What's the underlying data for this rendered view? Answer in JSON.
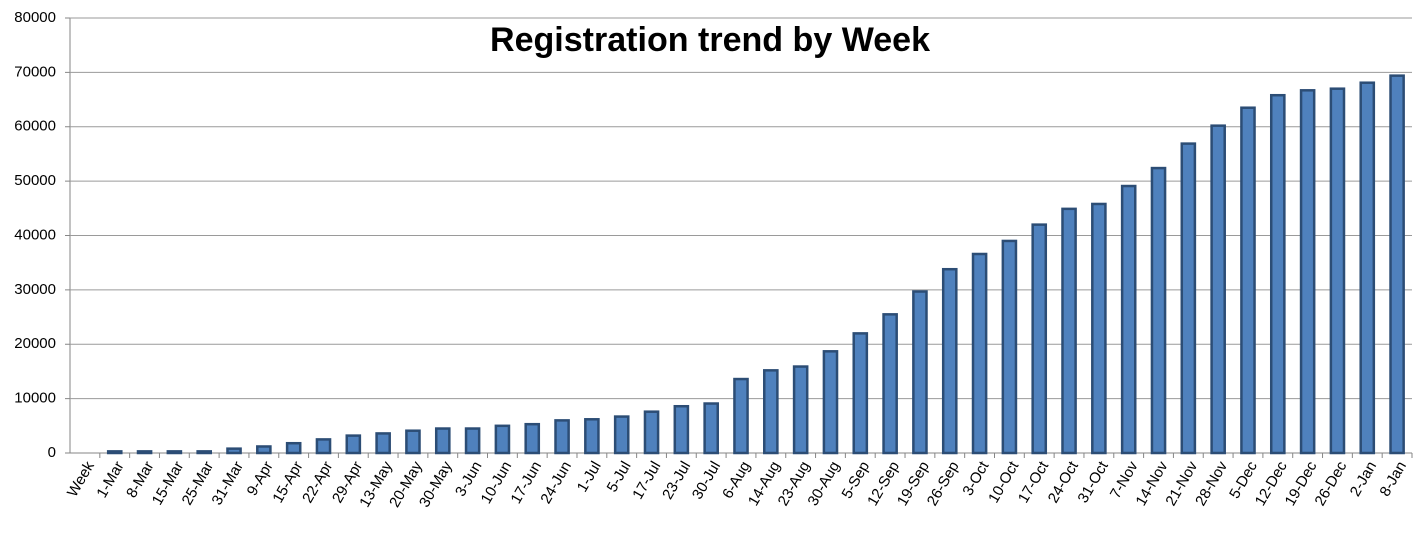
{
  "chart_data": {
    "type": "bar",
    "title": "Registration trend by Week",
    "categories": [
      "Week",
      "1-Mar",
      "8-Mar",
      "15-Mar",
      "25-Mar",
      "31-Mar",
      "9-Apr",
      "15-Apr",
      "22-Apr",
      "29-Apr",
      "13-May",
      "20-May",
      "30-May",
      "3-Jun",
      "10-Jun",
      "17-Jun",
      "24-Jun",
      "1-Jul",
      "5-Jul",
      "17-Jul",
      "23-Jul",
      "30-Jul",
      "6-Aug",
      "14-Aug",
      "23-Aug",
      "30-Aug",
      "5-Sep",
      "12-Sep",
      "19-Sep",
      "26-Sep",
      "3-Oct",
      "10-Oct",
      "17-Oct",
      "24-Oct",
      "31-Oct",
      "7-Nov",
      "14-Nov",
      "21-Nov",
      "28-Nov",
      "5-Dec",
      "12-Dec",
      "19-Dec",
      "26-Dec",
      "2-Jan",
      "8-Jan"
    ],
    "values": [
      null,
      300,
      300,
      300,
      300,
      800,
      1200,
      1800,
      2500,
      3200,
      3600,
      4100,
      4500,
      4500,
      5000,
      5300,
      6000,
      6200,
      6700,
      7600,
      8600,
      9100,
      13600,
      15200,
      15900,
      18700,
      22000,
      25500,
      29700,
      33800,
      36600,
      39000,
      42000,
      44900,
      45800,
      49100,
      52400,
      56900,
      60200,
      63500,
      65800,
      66700,
      67000,
      68100,
      69400
    ],
    "color": "#4f81bd",
    "ylim": [
      0,
      80000
    ],
    "yticks": [
      0,
      10000,
      20000,
      30000,
      40000,
      50000,
      60000,
      70000,
      80000
    ],
    "grid": true
  }
}
